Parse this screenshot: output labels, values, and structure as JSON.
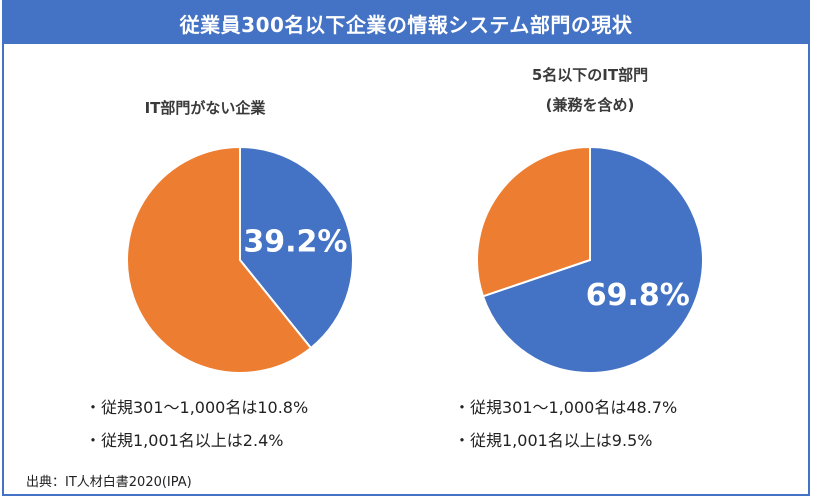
{
  "header": {
    "title": "従業員300名以下企業の情報システム部門の現状"
  },
  "colors": {
    "accent": "#4472c4",
    "secondary": "#ed7d31"
  },
  "chart_data": [
    {
      "type": "pie",
      "title": "IT部門がない企業",
      "subtitle": "",
      "slices": [
        {
          "label": "",
          "value": 39.2,
          "color": "#4472c4",
          "data_label": "39.2%"
        },
        {
          "label": "",
          "value": 60.8,
          "color": "#ed7d31",
          "data_label": ""
        }
      ],
      "notes": [
        "・従規301〜1,000名は10.8%",
        "・従規1,001名以上は2.4%"
      ]
    },
    {
      "type": "pie",
      "title": "5名以下のIT部門",
      "subtitle": "(兼務を含め)",
      "slices": [
        {
          "label": "",
          "value": 69.8,
          "color": "#4472c4",
          "data_label": "69.8%"
        },
        {
          "label": "",
          "value": 30.2,
          "color": "#ed7d31",
          "data_label": ""
        }
      ],
      "notes": [
        "・従規301〜1,000名は48.7%",
        "・従規1,001名以上は9.5%"
      ]
    }
  ],
  "footer": {
    "source": "出典：IT人材白書2020(IPA)"
  }
}
